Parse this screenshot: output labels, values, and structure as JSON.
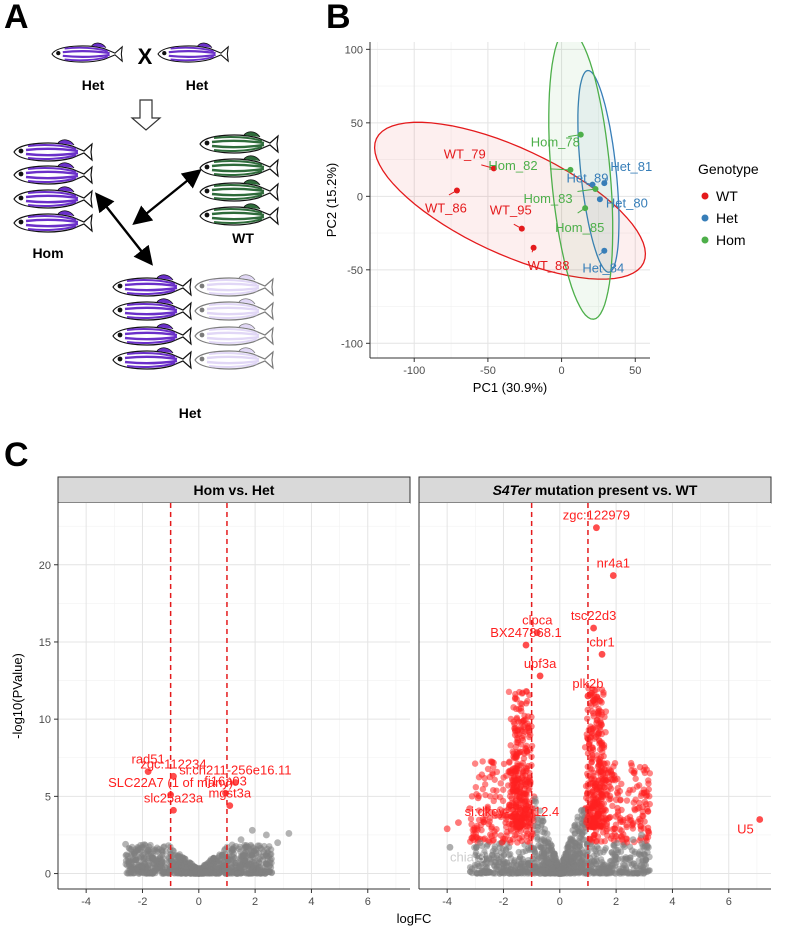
{
  "panels": {
    "a": "A",
    "b": "B",
    "c": "C"
  },
  "panel_a": {
    "cross_symbol": "X",
    "parent_left_label": "Het",
    "parent_right_label": "Het",
    "hom_label": "Hom",
    "wt_label": "WT",
    "het_label": "Het",
    "colors": {
      "hom_stripe": "#6a2fc9",
      "wt_stripe": "#2e6b3a",
      "het_faded": "#c9b8ef"
    }
  },
  "chart_data": [
    {
      "type": "scatter",
      "title": "",
      "xlabel": "PC1 (30.9%)",
      "ylabel": "PC2 (15.2%)",
      "xlim": [
        -130,
        60
      ],
      "ylim": [
        -110,
        105
      ],
      "x_ticks": [
        -100,
        -50,
        0,
        50
      ],
      "y_ticks": [
        -100,
        -50,
        0,
        50,
        100
      ],
      "grid": true,
      "legend_title": "Genotype",
      "legend_position": "right",
      "series": [
        {
          "name": "WT",
          "color": "#e41a1c",
          "points": [
            {
              "label": "WT_79",
              "x": -46,
              "y": 19
            },
            {
              "label": "WT_86",
              "x": -71,
              "y": 4
            },
            {
              "label": "WT_95",
              "x": -27,
              "y": -22
            },
            {
              "label": "WT_88",
              "x": -19,
              "y": -35
            }
          ]
        },
        {
          "name": "Het",
          "color": "#377eb8",
          "points": [
            {
              "label": "Het_81",
              "x": 29,
              "y": 9
            },
            {
              "label": "Het_89",
              "x": 21,
              "y": 8
            },
            {
              "label": "Het_80",
              "x": 26,
              "y": -2
            },
            {
              "label": "Het_84",
              "x": 29,
              "y": -37
            }
          ]
        },
        {
          "name": "Hom",
          "color": "#4daf4a",
          "points": [
            {
              "label": "Hom_78",
              "x": 13,
              "y": 42
            },
            {
              "label": "Hom_82",
              "x": 6,
              "y": 18
            },
            {
              "label": "Hom_83",
              "x": 23,
              "y": 5
            },
            {
              "label": "Hom_85",
              "x": 16,
              "y": -8
            }
          ]
        }
      ],
      "ellipses": [
        {
          "series": "WT",
          "cx": -35,
          "cy": -3,
          "rx": 100,
          "ry": 36,
          "angle_deg": -25
        },
        {
          "series": "Het",
          "cx": 25,
          "cy": 17,
          "rx": 12,
          "ry": 69,
          "angle_deg": 6
        },
        {
          "series": "Hom",
          "cx": 13,
          "cy": 15,
          "rx": 20,
          "ry": 99,
          "angle_deg": 5
        }
      ]
    },
    {
      "type": "scatter",
      "facets": [
        {
          "title": "Hom vs. Het",
          "title_italic_part": "",
          "xlim": [
            -5,
            7.5
          ],
          "ylim": [
            -1,
            24
          ],
          "threshold_logfc": [
            -1,
            1
          ],
          "significant_color": "#ff2020",
          "nonsig_color": "#808080",
          "cloud_max_p": 1.6,
          "labels": [
            {
              "text": "rad51",
              "x": -1.8,
              "y": 6.6
            },
            {
              "text": "zgc:112234",
              "x": -0.9,
              "y": 6.3
            },
            {
              "text": "si:ch211-256e16.11",
              "x": 1.3,
              "y": 5.9
            },
            {
              "text": "SLC22A7 (1 of many)",
              "x": -1.0,
              "y": 5.1
            },
            {
              "text": "fj16a03",
              "x": 0.95,
              "y": 5.2
            },
            {
              "text": "slc25a23a",
              "x": -0.9,
              "y": 4.1
            },
            {
              "text": "mgst3a",
              "x": 1.1,
              "y": 4.4
            }
          ],
          "extra_points": [
            {
              "x": -2.6,
              "y": 1.9
            },
            {
              "x": -1.8,
              "y": 1.5
            },
            {
              "x": 2.4,
              "y": 2.5
            },
            {
              "x": 2.8,
              "y": 2.0
            },
            {
              "x": 3.2,
              "y": 2.6
            },
            {
              "x": 1.9,
              "y": 2.8
            },
            {
              "x": 2.1,
              "y": 1.8
            },
            {
              "x": 1.5,
              "y": 2.2
            }
          ]
        },
        {
          "title": " mutation present vs. WT",
          "title_italic_part": "S4Ter",
          "xlim": [
            -5,
            7.5
          ],
          "ylim": [
            -1,
            24
          ],
          "threshold_logfc": [
            -1,
            1
          ],
          "significant_color": "#ff2020",
          "nonsig_color": "#808080",
          "cloud_max_p": 7.0,
          "labels": [
            {
              "text": "zgc:122979",
              "x": 1.3,
              "y": 22.4
            },
            {
              "text": "nr4a1",
              "x": 1.9,
              "y": 19.3
            },
            {
              "text": "clpca",
              "x": -0.8,
              "y": 15.6
            },
            {
              "text": "tsc22d3",
              "x": 1.2,
              "y": 15.9
            },
            {
              "text": "BX247868.1",
              "x": -1.2,
              "y": 14.8
            },
            {
              "text": "cbr1",
              "x": 1.5,
              "y": 14.2
            },
            {
              "text": "upf3a",
              "x": -0.7,
              "y": 12.8
            },
            {
              "text": "plk2b",
              "x": 1.0,
              "y": 11.5
            },
            {
              "text": "si:dkey-207j12.4",
              "x": -1.7,
              "y": 3.2
            },
            {
              "text": "chia.3",
              "x": -3.9,
              "y": 1.7,
              "color": "#cccccc"
            },
            {
              "text": "U5",
              "x": 7.1,
              "y": 3.5
            }
          ],
          "extra_points": [
            {
              "x": -4.0,
              "y": 2.9
            },
            {
              "x": -3.6,
              "y": 3.3
            },
            {
              "x": -3.2,
              "y": 4.2
            },
            {
              "x": -2.9,
              "y": 4.9
            },
            {
              "x": 2.6,
              "y": 2.2
            },
            {
              "x": 3.1,
              "y": 1.7
            },
            {
              "x": 2.9,
              "y": 2.5
            }
          ]
        }
      ],
      "xlabel": "logFC",
      "ylabel": "-log10(PValue)",
      "x_ticks": [
        -4,
        -2,
        0,
        2,
        4,
        6
      ],
      "y_ticks": [
        0,
        5,
        10,
        15,
        20
      ],
      "grid": true
    }
  ]
}
